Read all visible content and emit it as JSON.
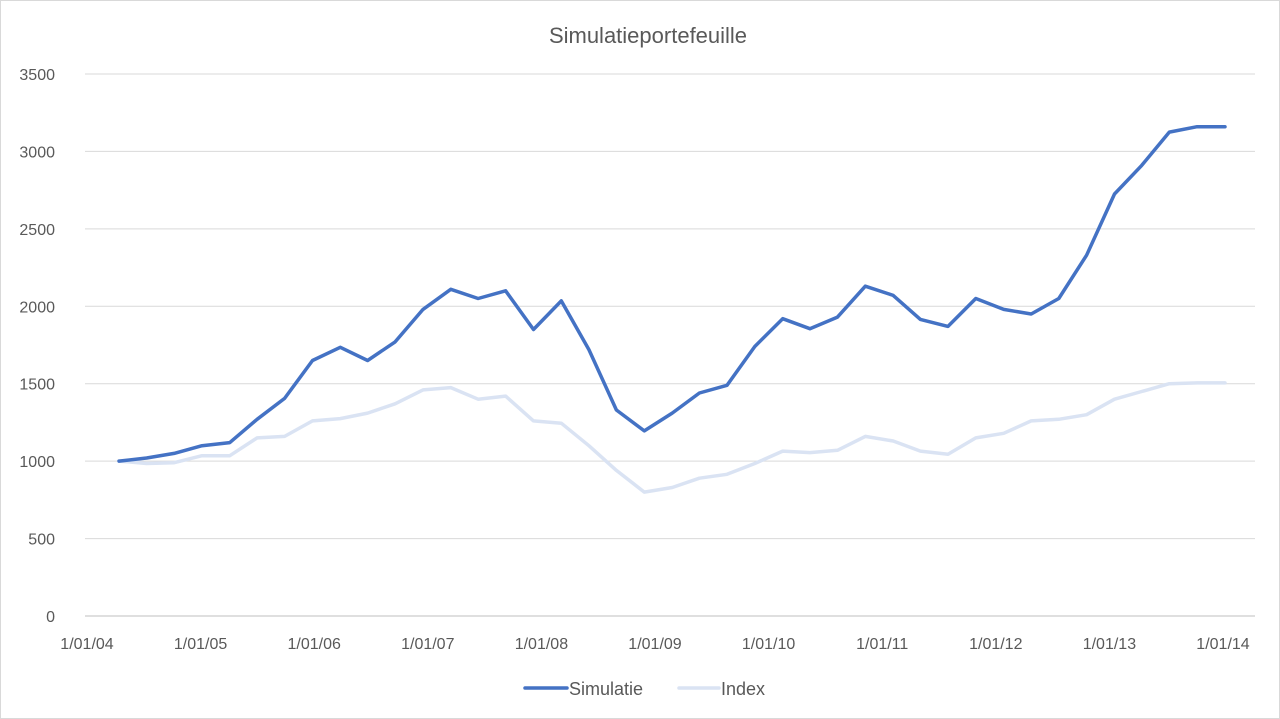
{
  "chart_data": {
    "type": "line",
    "title": "Simulatieportefeuille",
    "xlabel": "",
    "ylabel": "",
    "ylim": [
      0,
      3500
    ],
    "y_ticks": [
      0,
      500,
      1000,
      1500,
      2000,
      2500,
      3000,
      3500
    ],
    "x_tick_labels": [
      "1/01/04",
      "1/01/05",
      "1/01/06",
      "1/01/07",
      "1/01/08",
      "1/01/09",
      "1/01/10",
      "1/01/11",
      "1/01/12",
      "1/01/13",
      "1/01/14"
    ],
    "grid": "horizontal",
    "legend_position": "bottom",
    "x": [
      "2004-01-01",
      "2004-04-01",
      "2004-07-01",
      "2004-10-01",
      "2005-01-01",
      "2005-04-01",
      "2005-07-01",
      "2005-10-01",
      "2006-01-01",
      "2006-04-01",
      "2006-07-01",
      "2006-10-01",
      "2007-01-01",
      "2007-04-01",
      "2007-07-01",
      "2007-10-01",
      "2008-01-01",
      "2008-04-01",
      "2008-07-01",
      "2008-10-01",
      "2009-01-01",
      "2009-04-01",
      "2009-07-01",
      "2009-10-01",
      "2010-01-01",
      "2010-04-01",
      "2010-07-01",
      "2010-10-01",
      "2011-01-01",
      "2011-04-01",
      "2011-07-01",
      "2011-10-01",
      "2012-01-01",
      "2012-04-01",
      "2012-07-01",
      "2012-10-01",
      "2013-01-01",
      "2013-04-01",
      "2013-07-01",
      "2013-10-01",
      "2014-01-01"
    ],
    "series": [
      {
        "name": "Simulatie",
        "color": "#4472c4",
        "values": [
          1000,
          1020,
          1050,
          1100,
          1120,
          1270,
          1405,
          1650,
          1735,
          1650,
          1770,
          1980,
          2110,
          2050,
          2100,
          1850,
          2035,
          1720,
          1330,
          1195,
          1310,
          1440,
          1490,
          1740,
          1920,
          1855,
          1930,
          2130,
          2070,
          1915,
          1870,
          2050,
          1980,
          1950,
          2050,
          2330,
          2725,
          2910,
          3125,
          3160,
          3160
        ]
      },
      {
        "name": "Index",
        "color": "#dae3f3",
        "values": [
          1000,
          985,
          990,
          1035,
          1035,
          1150,
          1160,
          1260,
          1275,
          1310,
          1370,
          1460,
          1475,
          1400,
          1420,
          1260,
          1245,
          1100,
          940,
          800,
          830,
          890,
          915,
          985,
          1065,
          1055,
          1070,
          1160,
          1130,
          1065,
          1045,
          1150,
          1180,
          1260,
          1270,
          1300,
          1400,
          1450,
          1500,
          1505,
          1505
        ]
      }
    ]
  }
}
